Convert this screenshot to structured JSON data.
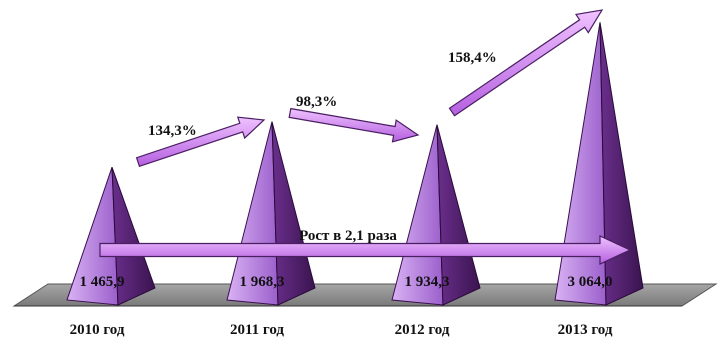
{
  "chart_data": {
    "type": "bar",
    "style": "3d-pyramid",
    "categories": [
      "2010 год",
      "2011 год",
      "2012 год",
      "2013 год"
    ],
    "values": [
      1465.9,
      1968.3,
      1934.3,
      3064.0
    ],
    "value_labels": [
      "1 465,9",
      "1 968,3",
      "1 934,3",
      "3 064,0"
    ],
    "growth_annotations": [
      {
        "from": "2010 год",
        "to": "2011 год",
        "label": "134,3%"
      },
      {
        "from": "2011 год",
        "to": "2012 год",
        "label": "98,3%"
      },
      {
        "from": "2012 год",
        "to": "2013 год",
        "label": "158,4%"
      }
    ],
    "overall_annotation": {
      "from": "2010 год",
      "to": "2013 год",
      "label": "Рост в 2,1 раза"
    },
    "title": "",
    "xlabel": "",
    "ylabel": "",
    "ylim": [
      0,
      3200
    ],
    "grid": false,
    "legend": "none",
    "colors": {
      "pyramid_light": "#c08ae6",
      "pyramid_mid": "#9a5cc8",
      "pyramid_dark": "#4a1f62",
      "arrow": "#d38cf2",
      "floor": "#8c8c8c"
    }
  }
}
